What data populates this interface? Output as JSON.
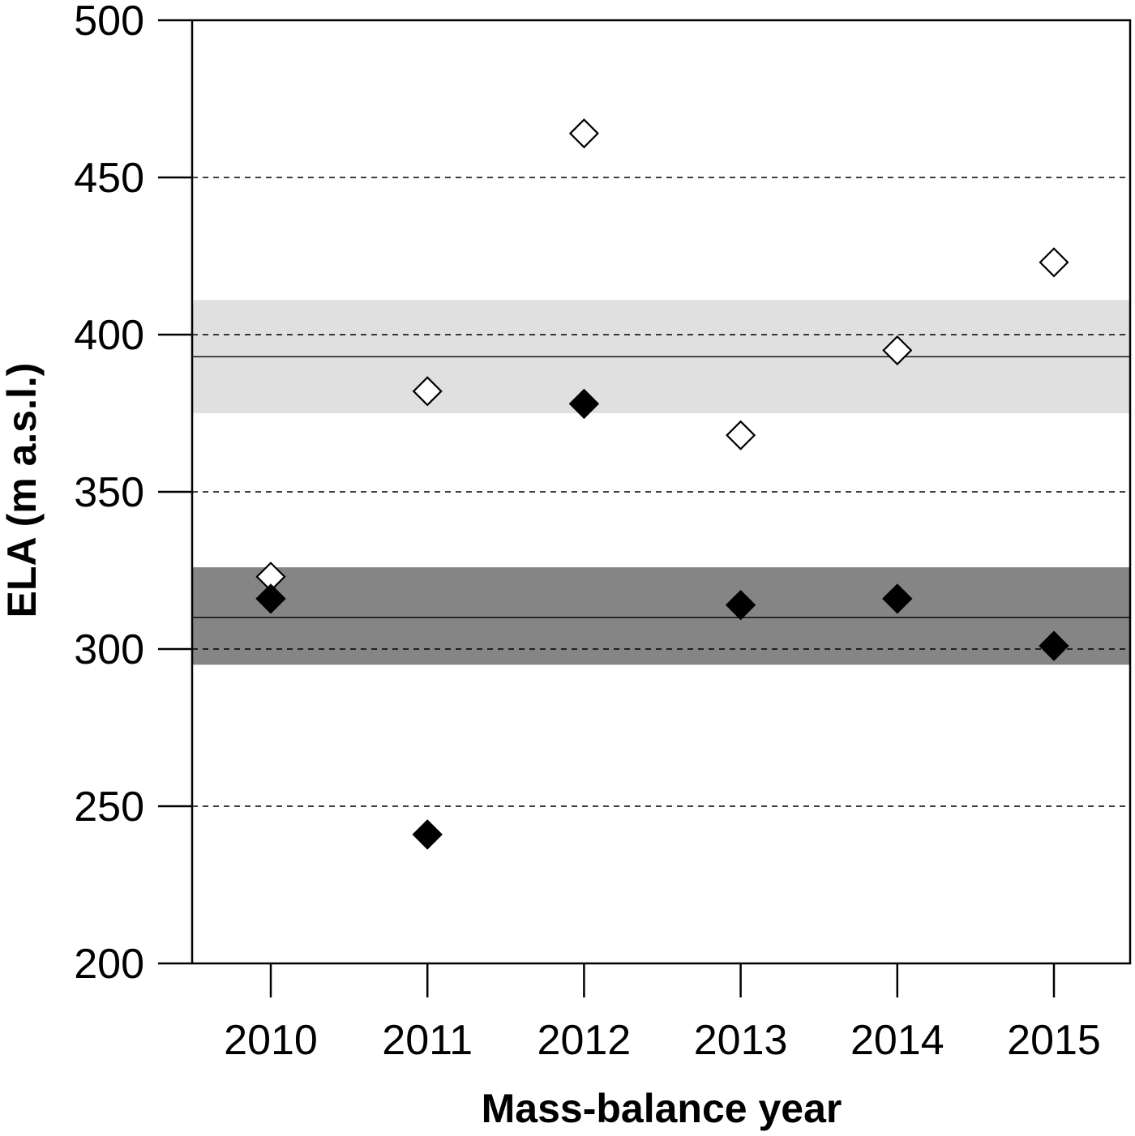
{
  "chart_data": {
    "type": "scatter",
    "title": "",
    "xlabel": "Mass-balance year",
    "ylabel": "ELA (m a.s.l.)",
    "categories": [
      "2010",
      "2011",
      "2012",
      "2013",
      "2014",
      "2015"
    ],
    "ylim": [
      200,
      500
    ],
    "yticks": [
      "200",
      "250",
      "300",
      "350",
      "400",
      "450",
      "500"
    ],
    "grid": "dashed horizontal lines at y ticks",
    "legend": "none",
    "series": [
      {
        "marker": "open-diamond",
        "color": "#000000",
        "values": [
          323,
          382,
          464,
          368,
          395,
          423
        ]
      },
      {
        "marker": "filled-diamond",
        "color": "#000000",
        "values": [
          316,
          241,
          378,
          314,
          316,
          301
        ]
      }
    ],
    "bands": [
      {
        "color": "#e0e0e0",
        "mean": 393,
        "lower": 375,
        "upper": 411
      },
      {
        "color": "#858585",
        "mean": 310,
        "lower": 295,
        "upper": 326
      }
    ]
  }
}
